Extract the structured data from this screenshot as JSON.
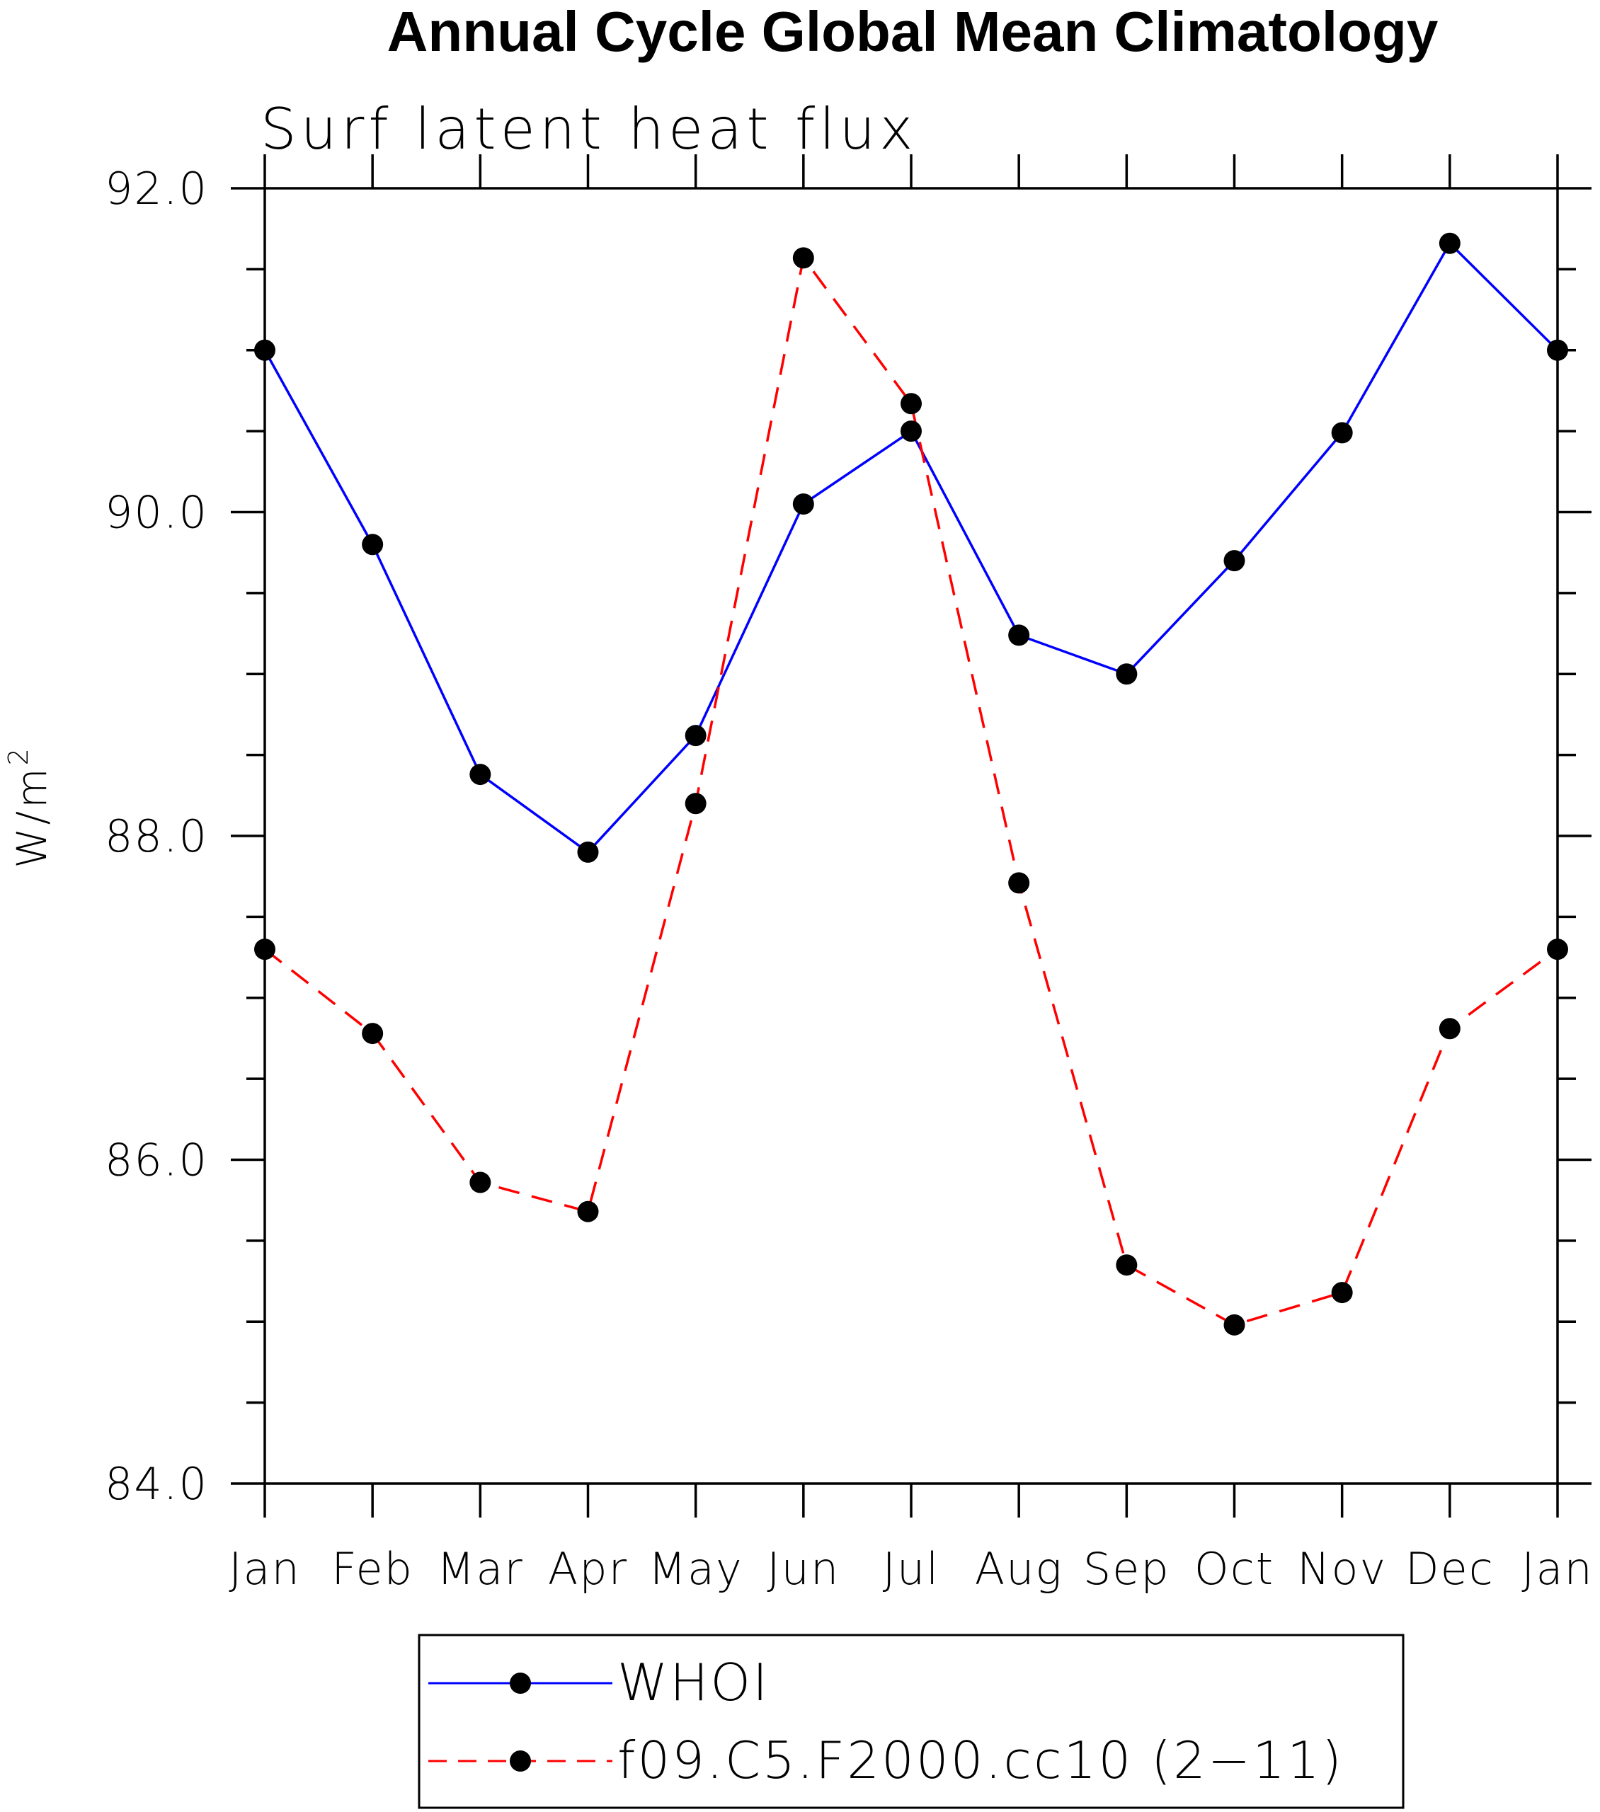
{
  "chart_data": {
    "type": "line",
    "title": "Annual Cycle Global Mean Climatology",
    "subtitle": "Surf latent heat flux",
    "ylabel": "W/m",
    "ylabel_superscript": "2",
    "xlabel": "",
    "categories": [
      "Jan",
      "Feb",
      "Mar",
      "Apr",
      "May",
      "Jun",
      "Jul",
      "Aug",
      "Sep",
      "Oct",
      "Nov",
      "Dec",
      "Jan"
    ],
    "ylim": [
      84.0,
      92.0
    ],
    "yticks": [
      "84.0",
      "86.0",
      "88.0",
      "90.0",
      "92.0"
    ],
    "ytick_values": [
      84,
      86,
      88,
      90,
      92
    ],
    "y_minor_step": 0.5,
    "grid": false,
    "legend_position": "bottom",
    "series": [
      {
        "name": "WHOI",
        "color": "#0000ff",
        "line_style": "solid",
        "marker": "filled-circle",
        "values": [
          91.0,
          89.8,
          88.38,
          87.9,
          88.62,
          90.05,
          90.5,
          89.24,
          89.0,
          89.7,
          90.49,
          91.66,
          91.0
        ]
      },
      {
        "name": "f09.C5.F2000.cc10 (2−11)",
        "color": "#ff0000",
        "line_style": "dashed",
        "marker": "filled-circle",
        "values": [
          87.3,
          86.78,
          85.86,
          85.68,
          88.2,
          91.57,
          90.67,
          87.71,
          85.35,
          84.98,
          85.18,
          86.81,
          87.3
        ]
      }
    ]
  }
}
